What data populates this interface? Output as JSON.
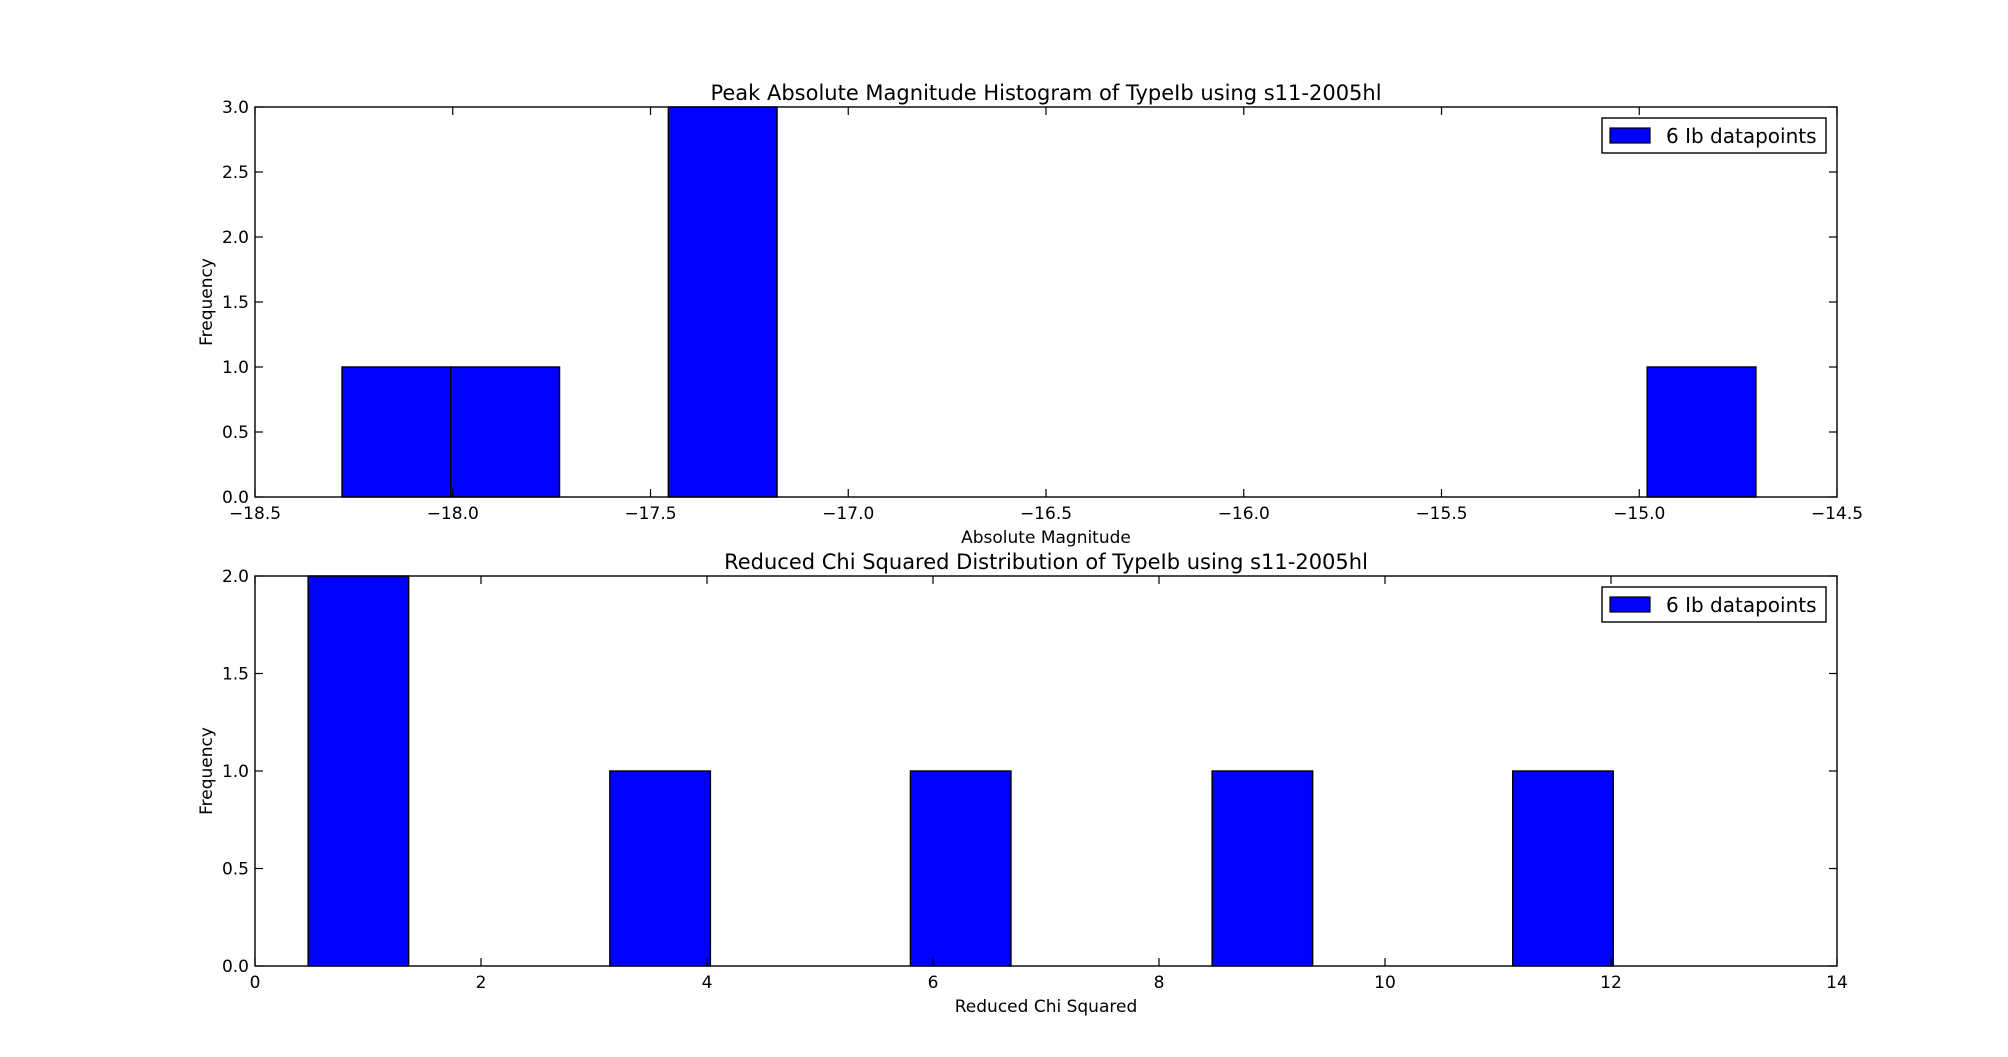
{
  "chart_data": [
    {
      "type": "bar",
      "title": "Peak Absolute Magnitude Histogram of TypeIb using s11-2005hl",
      "xlabel": "Absolute Magnitude",
      "ylabel": "Frequency",
      "xlim": [
        -18.5,
        -14.5
      ],
      "ylim": [
        0,
        3.0
      ],
      "xticks": [
        "−18.5",
        "−18.0",
        "−17.5",
        "−17.0",
        "−16.5",
        "−16.0",
        "−15.5",
        "−15.0",
        "−14.5"
      ],
      "yticks": [
        "0.0",
        "0.5",
        "1.0",
        "1.5",
        "2.0",
        "2.5",
        "3.0"
      ],
      "bar_color": "#0000ff",
      "bins": [
        {
          "x0": -18.28,
          "x1": -18.005,
          "count": 1
        },
        {
          "x0": -18.005,
          "x1": -17.73,
          "count": 1
        },
        {
          "x0": -17.455,
          "x1": -17.18,
          "count": 3
        },
        {
          "x0": -14.98,
          "x1": -14.705,
          "count": 1
        }
      ],
      "legend": {
        "label": "6 Ib datapoints",
        "position": "upper right"
      }
    },
    {
      "type": "bar",
      "title": "Reduced Chi Squared Distribution of TypeIb using s11-2005hl",
      "xlabel": "Reduced Chi Squared",
      "ylabel": "Frequency",
      "xlim": [
        0,
        14
      ],
      "ylim": [
        0,
        2.0
      ],
      "xticks": [
        "0",
        "2",
        "4",
        "6",
        "8",
        "10",
        "12",
        "14"
      ],
      "yticks": [
        "0.0",
        "0.5",
        "1.0",
        "1.5",
        "2.0"
      ],
      "bar_color": "#0000ff",
      "bins": [
        {
          "x0": 0.47,
          "x1": 1.36,
          "count": 2
        },
        {
          "x0": 3.14,
          "x1": 4.03,
          "count": 1
        },
        {
          "x0": 5.8,
          "x1": 6.69,
          "count": 1
        },
        {
          "x0": 8.47,
          "x1": 9.36,
          "count": 1
        },
        {
          "x0": 11.13,
          "x1": 12.02,
          "count": 1
        }
      ],
      "legend": {
        "label": "6 Ib datapoints",
        "position": "upper right"
      }
    }
  ]
}
